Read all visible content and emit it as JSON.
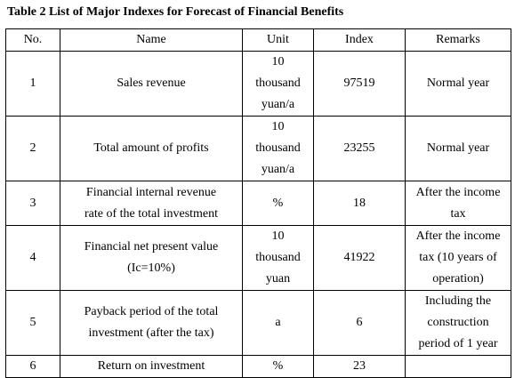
{
  "caption": "Table 2 List of Major Indexes for Forecast of Financial Benefits",
  "table": {
    "headers": [
      "No.",
      "Name",
      "Unit",
      "Index",
      "Remarks"
    ],
    "rows": [
      {
        "no": "1",
        "name": [
          "Sales revenue"
        ],
        "unit": [
          "10",
          "thousand",
          "yuan/a"
        ],
        "index": "97519",
        "remarks": [
          "Normal year"
        ]
      },
      {
        "no": "2",
        "name": [
          "Total amount of profits"
        ],
        "unit": [
          "10",
          "thousand",
          "yuan/a"
        ],
        "index": "23255",
        "remarks": [
          "Normal year"
        ]
      },
      {
        "no": "3",
        "name": [
          "Financial internal revenue",
          "rate of the total investment"
        ],
        "unit": [
          "%"
        ],
        "index": "18",
        "remarks": [
          "After the income",
          "tax"
        ]
      },
      {
        "no": "4",
        "name": [
          "Financial net present value",
          "(Ic=10%)"
        ],
        "unit": [
          "10",
          "thousand",
          "yuan"
        ],
        "index": "41922",
        "remarks": [
          "After the income",
          "tax (10 years of",
          "operation)"
        ]
      },
      {
        "no": "5",
        "name": [
          "Payback period of the total",
          "investment (after the tax)"
        ],
        "unit": [
          "a"
        ],
        "index": "6",
        "remarks": [
          "Including the",
          "construction",
          "period of 1 year"
        ]
      },
      {
        "no": "6",
        "name": [
          "Return on investment"
        ],
        "unit": [
          "%"
        ],
        "index": "23",
        "remarks": [
          ""
        ]
      }
    ]
  }
}
